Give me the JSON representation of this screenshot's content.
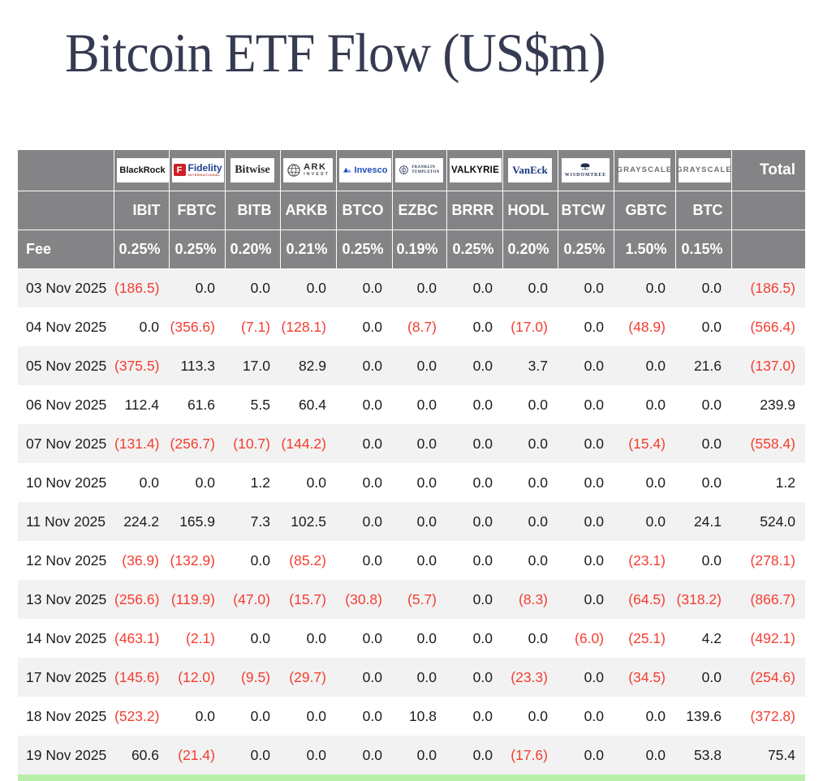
{
  "title": "Bitcoin ETF Flow (US$m)",
  "colors": {
    "header_bg": "#848487",
    "header_text": "#ffffff",
    "row_alt_bg": "#f2f2f2",
    "row_bg": "#ffffff",
    "negative_red": "#f43d30",
    "value_text": "#1c1c1e",
    "bottom_accent_green": "#b9efab",
    "title_navy": "#363b51",
    "fidelity_red": "#cd2026",
    "fidelity_navy": "#23418e",
    "invesco_blue": "#1e4fbb",
    "vaneck_navy": "#17387f",
    "wisdomtree_navy": "#222f4e"
  },
  "chart_data": {
    "type": "table",
    "title": "Bitcoin ETF Flow (US$m)",
    "negative_format": "parentheses shown in red",
    "providers": [
      {
        "id": "blackrock",
        "label": "BlackRock"
      },
      {
        "id": "fidelity",
        "label": "Fidelity",
        "sub": "INTERNATIONAL",
        "mark": "F"
      },
      {
        "id": "bitwise",
        "label": "Bitwise"
      },
      {
        "id": "ark",
        "label": "ARK",
        "sub": "INVEST"
      },
      {
        "id": "invesco",
        "label": "Invesco"
      },
      {
        "id": "franklin",
        "label": "FRANKLIN",
        "sub": "TEMPLETON"
      },
      {
        "id": "valkyrie",
        "label": "VALKYRIE"
      },
      {
        "id": "vaneck",
        "label": "VanEck"
      },
      {
        "id": "wisdomtree",
        "label": "WISDOMTREE"
      },
      {
        "id": "grayscale",
        "label": "GRAYSCALE"
      },
      {
        "id": "grayscale2",
        "label": "GRAYSCALE"
      }
    ],
    "total_label": "Total",
    "fee_label": "Fee",
    "tickers": [
      "IBIT",
      "FBTC",
      "BITB",
      "ARKB",
      "BTCO",
      "EZBC",
      "BRRR",
      "HODL",
      "BTCW",
      "GBTC",
      "BTC"
    ],
    "fees": [
      "0.25%",
      "0.25%",
      "0.20%",
      "0.21%",
      "0.25%",
      "0.19%",
      "0.25%",
      "0.20%",
      "0.25%",
      "1.50%",
      "0.15%"
    ],
    "rows": [
      {
        "date": "03 Nov 2025",
        "values": [
          "(186.5)",
          "0.0",
          "0.0",
          "0.0",
          "0.0",
          "0.0",
          "0.0",
          "0.0",
          "0.0",
          "0.0",
          "0.0"
        ],
        "total": "(186.5)"
      },
      {
        "date": "04 Nov 2025",
        "values": [
          "0.0",
          "(356.6)",
          "(7.1)",
          "(128.1)",
          "0.0",
          "(8.7)",
          "0.0",
          "(17.0)",
          "0.0",
          "(48.9)",
          "0.0"
        ],
        "total": "(566.4)"
      },
      {
        "date": "05 Nov 2025",
        "values": [
          "(375.5)",
          "113.3",
          "17.0",
          "82.9",
          "0.0",
          "0.0",
          "0.0",
          "3.7",
          "0.0",
          "0.0",
          "21.6"
        ],
        "total": "(137.0)"
      },
      {
        "date": "06 Nov 2025",
        "values": [
          "112.4",
          "61.6",
          "5.5",
          "60.4",
          "0.0",
          "0.0",
          "0.0",
          "0.0",
          "0.0",
          "0.0",
          "0.0"
        ],
        "total": "239.9"
      },
      {
        "date": "07 Nov 2025",
        "values": [
          "(131.4)",
          "(256.7)",
          "(10.7)",
          "(144.2)",
          "0.0",
          "0.0",
          "0.0",
          "0.0",
          "0.0",
          "(15.4)",
          "0.0"
        ],
        "total": "(558.4)"
      },
      {
        "date": "10 Nov 2025",
        "values": [
          "0.0",
          "0.0",
          "1.2",
          "0.0",
          "0.0",
          "0.0",
          "0.0",
          "0.0",
          "0.0",
          "0.0",
          "0.0"
        ],
        "total": "1.2"
      },
      {
        "date": "11 Nov 2025",
        "values": [
          "224.2",
          "165.9",
          "7.3",
          "102.5",
          "0.0",
          "0.0",
          "0.0",
          "0.0",
          "0.0",
          "0.0",
          "24.1"
        ],
        "total": "524.0"
      },
      {
        "date": "12 Nov 2025",
        "values": [
          "(36.9)",
          "(132.9)",
          "0.0",
          "(85.2)",
          "0.0",
          "0.0",
          "0.0",
          "0.0",
          "0.0",
          "(23.1)",
          "0.0"
        ],
        "total": "(278.1)"
      },
      {
        "date": "13 Nov 2025",
        "values": [
          "(256.6)",
          "(119.9)",
          "(47.0)",
          "(15.7)",
          "(30.8)",
          "(5.7)",
          "0.0",
          "(8.3)",
          "0.0",
          "(64.5)",
          "(318.2)"
        ],
        "total": "(866.7)"
      },
      {
        "date": "14 Nov 2025",
        "values": [
          "(463.1)",
          "(2.1)",
          "0.0",
          "0.0",
          "0.0",
          "0.0",
          "0.0",
          "0.0",
          "(6.0)",
          "(25.1)",
          "4.2"
        ],
        "total": "(492.1)"
      },
      {
        "date": "17 Nov 2025",
        "values": [
          "(145.6)",
          "(12.0)",
          "(9.5)",
          "(29.7)",
          "0.0",
          "0.0",
          "0.0",
          "(23.3)",
          "0.0",
          "(34.5)",
          "0.0"
        ],
        "total": "(254.6)"
      },
      {
        "date": "18 Nov 2025",
        "values": [
          "(523.2)",
          "0.0",
          "0.0",
          "0.0",
          "0.0",
          "10.8",
          "0.0",
          "0.0",
          "0.0",
          "0.0",
          "139.6"
        ],
        "total": "(372.8)"
      },
      {
        "date": "19 Nov 2025",
        "values": [
          "60.6",
          "(21.4)",
          "0.0",
          "0.0",
          "0.0",
          "0.0",
          "0.0",
          "(17.6)",
          "0.0",
          "0.0",
          "53.8"
        ],
        "total": "75.4"
      }
    ]
  }
}
